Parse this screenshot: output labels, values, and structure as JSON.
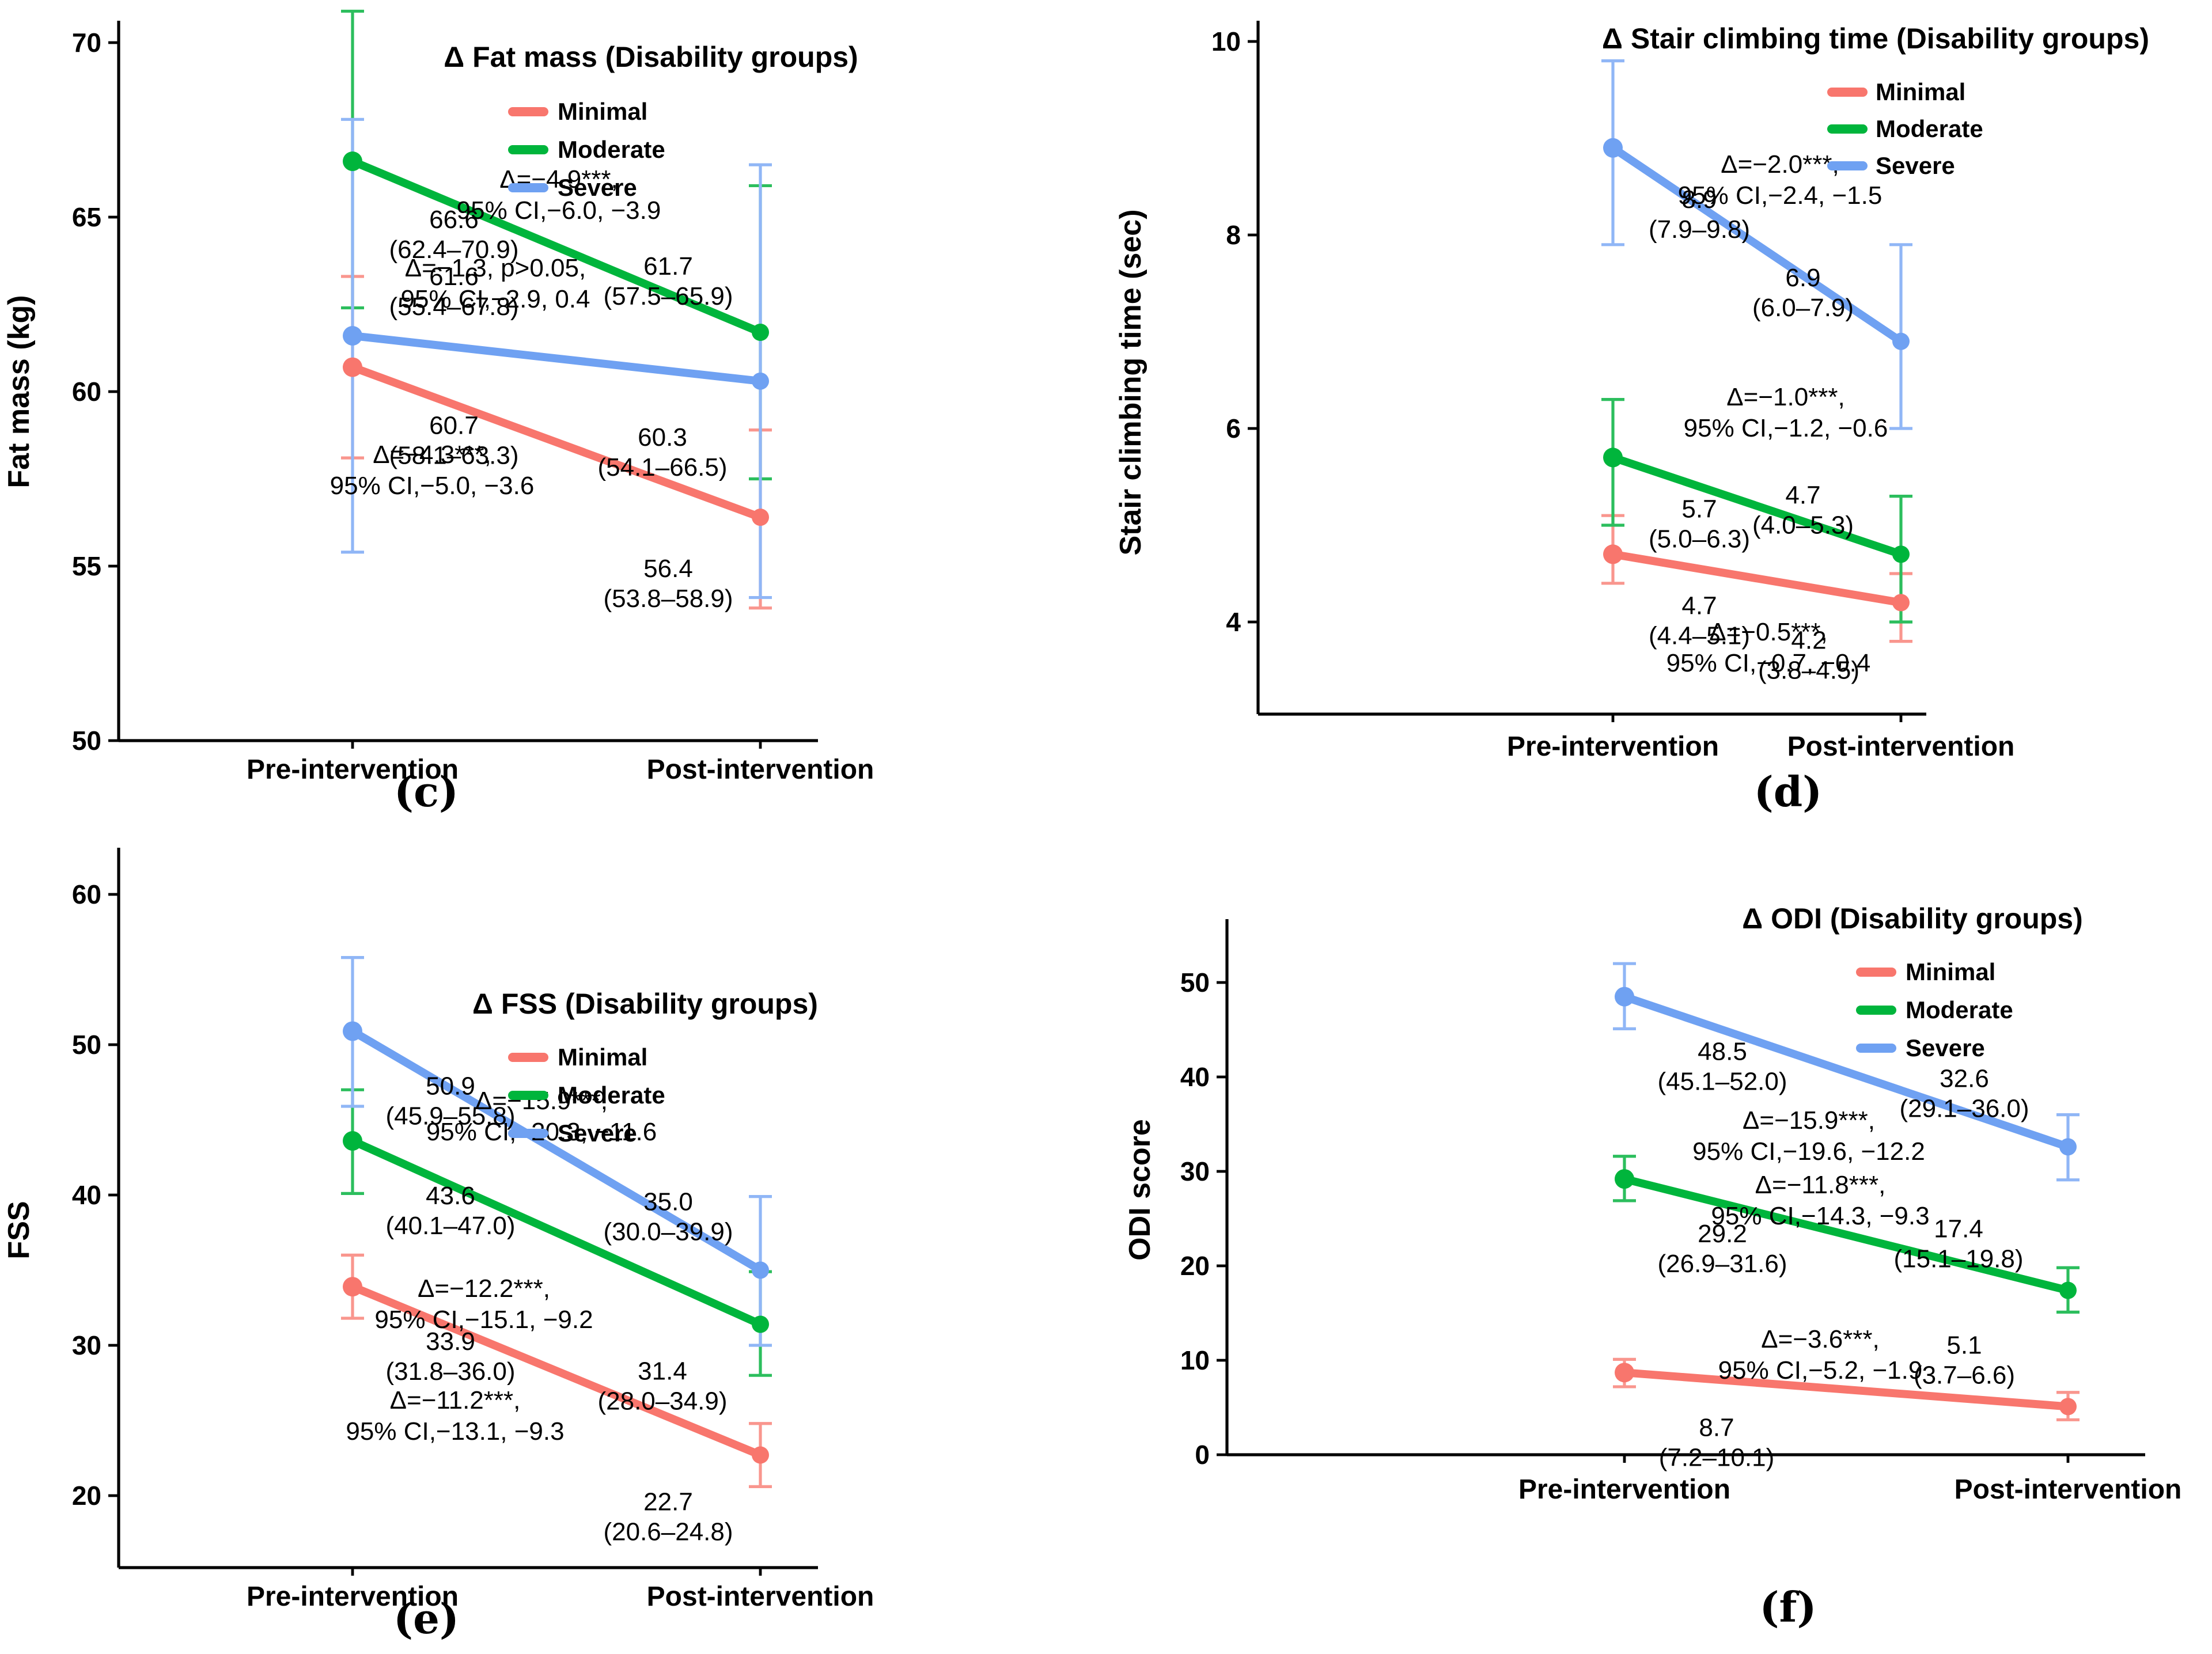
{
  "figure": {
    "background": "#ffffff"
  },
  "colors": {
    "minimal": "#F8766D",
    "moderate": "#00B53C",
    "severe": "#6FA1F2"
  },
  "colors_light": {
    "minimal": "#F9968E",
    "moderate": "#2CBE5D",
    "severe": "#90B6F6"
  },
  "chart_data": [
    {
      "id": "c",
      "type": "line",
      "panel_label": "(c)",
      "title": "Δ Fat mass (Disability groups)",
      "ylabel": "Fat mass (kg)",
      "ylim": [
        50,
        71
      ],
      "yticks": [
        "50",
        "55",
        "60",
        "65",
        "70"
      ],
      "ytick_values": [
        50,
        55,
        60,
        65,
        70
      ],
      "categories": [
        "Pre-intervention",
        "Post-intervention"
      ],
      "legend_position": "top-right",
      "series": [
        {
          "name": "Minimal",
          "color_key": "minimal",
          "values": [
            60.7,
            56.4
          ],
          "ci": [
            [
              58.1,
              63.3
            ],
            [
              53.8,
              58.9
            ]
          ],
          "point_labels": [
            [
              "60.7",
              "(58.1–63.3)"
            ],
            [
              "56.4",
              "(53.8–58.9)"
            ]
          ],
          "annotation": [
            "Δ=−4.3***,",
            "95% CI,−5.0, −3.6"
          ]
        },
        {
          "name": "Moderate",
          "color_key": "moderate",
          "values": [
            66.6,
            61.7
          ],
          "ci": [
            [
              62.4,
              70.9
            ],
            [
              57.5,
              65.9
            ]
          ],
          "point_labels": [
            [
              "66.6",
              "(62.4–70.9)"
            ],
            [
              "61.7",
              "(57.5–65.9)"
            ]
          ],
          "annotation": [
            "Δ=−4.9***,",
            "95% CI,−6.0, −3.9"
          ]
        },
        {
          "name": "Severe",
          "color_key": "severe",
          "values": [
            61.6,
            60.3
          ],
          "ci": [
            [
              55.4,
              67.8
            ],
            [
              54.1,
              66.5
            ]
          ],
          "point_labels": [
            [
              "61.6",
              "(55.4–67.8)"
            ],
            [
              "60.3",
              "(54.1–66.5)"
            ]
          ],
          "annotation": [
            "Δ=−1.3, p>0.05,",
            "95% CI,−2.9, 0.4"
          ]
        }
      ]
    },
    {
      "id": "d",
      "type": "line",
      "panel_label": "(d)",
      "title": "Δ Stair climbing time (Disability groups)",
      "ylabel": "Stair climbing time (sec)",
      "ylim": [
        3,
        10.2
      ],
      "yticks": [
        "4",
        "6",
        "8",
        "10"
      ],
      "ytick_values": [
        4,
        6,
        8,
        10
      ],
      "categories": [
        "Pre-intervention",
        "Post-intervention"
      ],
      "legend_position": "top-right",
      "series": [
        {
          "name": "Minimal",
          "color_key": "minimal",
          "values": [
            4.7,
            4.2
          ],
          "ci": [
            [
              4.4,
              5.1
            ],
            [
              3.8,
              4.5
            ]
          ],
          "point_labels": [
            [
              "4.7",
              "(4.4–5.1)"
            ],
            [
              "4.2",
              "(3.8–4.5)"
            ]
          ],
          "annotation": [
            "Δ=−0.5***,",
            "95% CI,−0.7, −0.4"
          ]
        },
        {
          "name": "Moderate",
          "color_key": "moderate",
          "values": [
            5.7,
            4.7
          ],
          "ci": [
            [
              5.0,
              6.3
            ],
            [
              4.0,
              5.3
            ]
          ],
          "point_labels": [
            [
              "5.7",
              "(5.0–6.3)"
            ],
            [
              "4.7",
              "(4.0–5.3)"
            ]
          ],
          "annotation": [
            "Δ=−1.0***,",
            "95% CI,−1.2, −0.6"
          ]
        },
        {
          "name": "Severe",
          "color_key": "severe",
          "values": [
            8.9,
            6.9
          ],
          "ci": [
            [
              7.9,
              9.8
            ],
            [
              6.0,
              7.9
            ]
          ],
          "point_labels": [
            [
              "8.9",
              "(7.9–9.8)"
            ],
            [
              "6.9",
              "(6.0–7.9)"
            ]
          ],
          "annotation": [
            "Δ=−2.0***,",
            "95% CI,−2.4, −1.5"
          ]
        }
      ]
    },
    {
      "id": "e",
      "type": "line",
      "panel_label": "(e)",
      "title": "Δ FSS (Disability groups)",
      "ylabel": "FSS",
      "ylim": [
        15,
        64
      ],
      "yticks": [
        "20",
        "30",
        "40",
        "50",
        "60"
      ],
      "ytick_values": [
        20,
        30,
        40,
        50,
        60
      ],
      "categories": [
        "Pre-intervention",
        "Post-intervention"
      ],
      "legend_position": "right-center",
      "series": [
        {
          "name": "Minimal",
          "color_key": "minimal",
          "values": [
            33.9,
            22.7
          ],
          "ci": [
            [
              31.8,
              36.0
            ],
            [
              20.6,
              24.8
            ]
          ],
          "point_labels": [
            [
              "33.9",
              "(31.8–36.0)"
            ],
            [
              "22.7",
              "(20.6–24.8)"
            ]
          ],
          "annotation": [
            "Δ=−11.2***,",
            "95% CI,−13.1, −9.3"
          ]
        },
        {
          "name": "Moderate",
          "color_key": "moderate",
          "values": [
            43.6,
            31.4
          ],
          "ci": [
            [
              40.1,
              47.0
            ],
            [
              28.0,
              34.9
            ]
          ],
          "point_labels": [
            [
              "43.6",
              "(40.1–47.0)"
            ],
            [
              "31.4",
              "(28.0–34.9)"
            ]
          ],
          "annotation": [
            "Δ=−12.2***,",
            "95% CI,−15.1, −9.2"
          ]
        },
        {
          "name": "Severe",
          "color_key": "severe",
          "values": [
            50.9,
            35.0
          ],
          "ci": [
            [
              45.9,
              55.8
            ],
            [
              30.0,
              39.9
            ]
          ],
          "point_labels": [
            [
              "50.9",
              "(45.9–55.8)"
            ],
            [
              "35.0",
              "(30.0–39.9)"
            ]
          ],
          "annotation": [
            "Δ=−15.9***,",
            "95% CI,−20.3, −11.6"
          ]
        }
      ]
    },
    {
      "id": "f",
      "type": "line",
      "panel_label": "(f)",
      "title": "Δ ODI (Disability groups)",
      "ylabel": "ODI score",
      "ylim": [
        0,
        53
      ],
      "yticks": [
        "0",
        "10",
        "20",
        "30",
        "40",
        "50"
      ],
      "ytick_values": [
        0,
        10,
        20,
        30,
        40,
        50
      ],
      "categories": [
        "Pre-intervention",
        "Post-intervention"
      ],
      "legend_position": "top-right",
      "series": [
        {
          "name": "Minimal",
          "color_key": "minimal",
          "values": [
            8.7,
            5.1
          ],
          "ci": [
            [
              7.2,
              10.1
            ],
            [
              3.7,
              6.6
            ]
          ],
          "point_labels": [
            [
              "8.7",
              "(7.2–10.1)"
            ],
            [
              "5.1",
              "(3.7–6.6)"
            ]
          ],
          "annotation": [
            "Δ=−3.6***,",
            "95% CI,−5.2, −1.9"
          ]
        },
        {
          "name": "Moderate",
          "color_key": "moderate",
          "values": [
            29.2,
            17.4
          ],
          "ci": [
            [
              26.9,
              31.6
            ],
            [
              15.1,
              19.8
            ]
          ],
          "point_labels": [
            [
              "29.2",
              "(26.9–31.6)"
            ],
            [
              "17.4",
              "(15.1–19.8)"
            ]
          ],
          "annotation": [
            "Δ=−11.8***,",
            "95% CI,−14.3, −9.3"
          ]
        },
        {
          "name": "Severe",
          "color_key": "severe",
          "values": [
            48.5,
            32.6
          ],
          "ci": [
            [
              45.1,
              52.0
            ],
            [
              29.1,
              36.0
            ]
          ],
          "point_labels": [
            [
              "48.5",
              "(45.1–52.0)"
            ],
            [
              "32.6",
              "(29.1–36.0)"
            ]
          ],
          "annotation": [
            "Δ=−15.9***,",
            "95% CI,−19.6, −12.2"
          ]
        }
      ]
    }
  ]
}
